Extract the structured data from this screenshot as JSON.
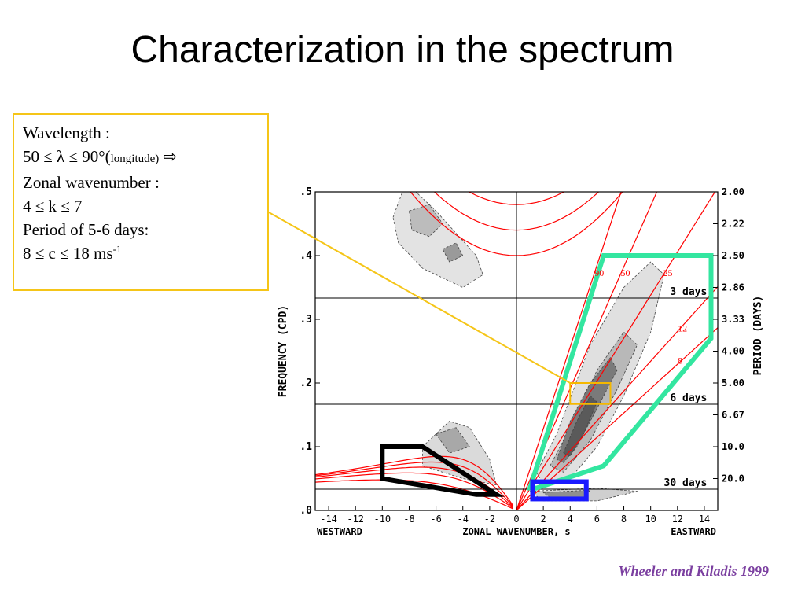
{
  "slide": {
    "title": "Characterization in the spectrum",
    "citation": "Wheeler and Kiladis 1999"
  },
  "info_box": {
    "line1": "Wavelength :",
    "line2_pre": "50 ≤ λ ≤ 90°(",
    "line2_small": "longitude)",
    "line2_arrow": "⇨",
    "line3": "Zonal wavenumber :",
    "line4": "4 ≤ k ≤ 7",
    "line5": "Period of 5-6 days:",
    "line6_pre": "8 ≤ c ≤ 18 ms",
    "line6_sup": "-1"
  },
  "colors": {
    "box_border": "#f5c518",
    "citation": "#7b3fa0",
    "dispersion_curves": "#ff0000",
    "kelvin_region": "#33e6a0",
    "rossby_region": "#000000",
    "mjo_region": "#1a1aff",
    "highlight_box": "#f5b800"
  },
  "chart_data": {
    "type": "heatmap",
    "xlabel": "ZONAL WAVENUMBER, s",
    "xlabel_left": "WESTWARD",
    "xlabel_right": "EASTWARD",
    "ylabel": "FREQUENCY (CPD)",
    "ylabel_right": "PERIOD (DAYS)",
    "xlim": [
      -15,
      15
    ],
    "ylim": [
      0,
      0.5
    ],
    "x_ticks": [
      -14,
      -12,
      -10,
      -8,
      -6,
      -4,
      -2,
      0,
      2,
      4,
      6,
      8,
      10,
      12,
      14
    ],
    "x_tick_labels": [
      "-14",
      "-12",
      "-10",
      "-8",
      "-6",
      "-4",
      "-2",
      "0",
      "2",
      "4",
      "6",
      "8",
      "10",
      "12",
      "14"
    ],
    "y_ticks": [
      0,
      0.1,
      0.2,
      0.3,
      0.4,
      0.5
    ],
    "y_tick_labels": [
      ".0",
      ".1",
      ".2",
      ".3",
      ".4",
      ".5"
    ],
    "period_ticks": [
      {
        "freq": 0.5,
        "label": "2.00"
      },
      {
        "freq": 0.45,
        "label": "2.22"
      },
      {
        "freq": 0.4,
        "label": "2.50"
      },
      {
        "freq": 0.35,
        "label": "2.86"
      },
      {
        "freq": 0.3,
        "label": "3.33"
      },
      {
        "freq": 0.25,
        "label": "4.00"
      },
      {
        "freq": 0.2,
        "label": "5.00"
      },
      {
        "freq": 0.15,
        "label": "6.67"
      },
      {
        "freq": 0.1,
        "label": "10.0"
      },
      {
        "freq": 0.05,
        "label": "20.0"
      }
    ],
    "reference_lines": [
      {
        "freq": 0.3333,
        "label": "3 days"
      },
      {
        "freq": 0.1667,
        "label": "6 days"
      },
      {
        "freq": 0.0333,
        "label": "30 days"
      }
    ],
    "kelvin_equivalent_depths": [
      {
        "h": 90,
        "label": "90"
      },
      {
        "h": 50,
        "label": "50"
      },
      {
        "h": 25,
        "label": "25"
      },
      {
        "h": 12,
        "label": "12"
      },
      {
        "h": 8,
        "label": "8"
      }
    ],
    "annotations": {
      "kelvin_region": [
        [
          1,
          0.035
        ],
        [
          6.5,
          0.4
        ],
        [
          14.5,
          0.4
        ],
        [
          14.5,
          0.27
        ],
        [
          6.5,
          0.07
        ],
        [
          1.5,
          0.035
        ]
      ],
      "rossby_region": [
        [
          -10,
          0.1
        ],
        [
          -7,
          0.1
        ],
        [
          -1.5,
          0.025
        ],
        [
          -3,
          0.025
        ],
        [
          -10,
          0.05
        ]
      ],
      "mjo_region": {
        "x": [
          1.2,
          5.2
        ],
        "y": [
          0.018,
          0.045
        ]
      },
      "highlight_box": {
        "x": [
          4,
          7
        ],
        "y": [
          0.167,
          0.2
        ]
      }
    },
    "grid": false
  }
}
